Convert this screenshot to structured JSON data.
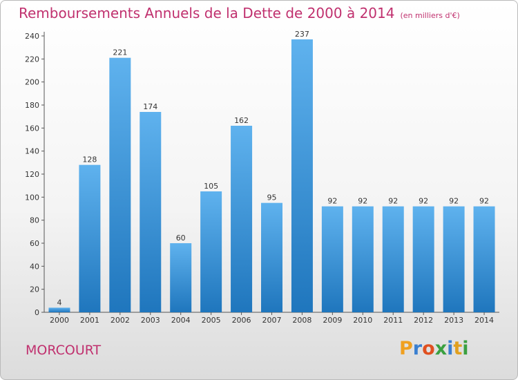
{
  "title": "Remboursements Annuels de la Dette de 2000 à 2014",
  "subtitle": "(en milliers d'€)",
  "city": "MORCOURT",
  "logo": {
    "letters": [
      "P",
      "r",
      "o",
      "x",
      "i",
      "t",
      "i"
    ],
    "colors": [
      "#f0a020",
      "#3a7fd0",
      "#e05020",
      "#3aa040",
      "#3a7fd0",
      "#e0a020",
      "#3aa040"
    ]
  },
  "colors": {
    "bar_top": "#5fb2ee",
    "bar_bottom": "#1f76bd",
    "title": "#c0306e"
  },
  "chart_data": {
    "type": "bar",
    "categories": [
      "2000",
      "2001",
      "2002",
      "2003",
      "2004",
      "2005",
      "2006",
      "2007",
      "2008",
      "2009",
      "2010",
      "2011",
      "2012",
      "2013",
      "2014"
    ],
    "values": [
      4,
      128,
      221,
      174,
      60,
      105,
      162,
      95,
      237,
      92,
      92,
      92,
      92,
      92,
      92
    ],
    "data_labels": [
      "4",
      "128",
      "221",
      "174",
      "60",
      "105",
      "162",
      "95",
      "237",
      "92",
      "92",
      "92",
      "92",
      "92",
      "92"
    ],
    "ylim": [
      0,
      240
    ],
    "yticks": [
      0,
      20,
      40,
      60,
      80,
      100,
      120,
      140,
      160,
      180,
      200,
      220,
      240
    ],
    "ytick_labels": [
      "0",
      "20",
      "40",
      "60",
      "80",
      "100",
      "120",
      "140",
      "160",
      "180",
      "200",
      "220",
      "240"
    ],
    "grid": false,
    "legend": false
  }
}
